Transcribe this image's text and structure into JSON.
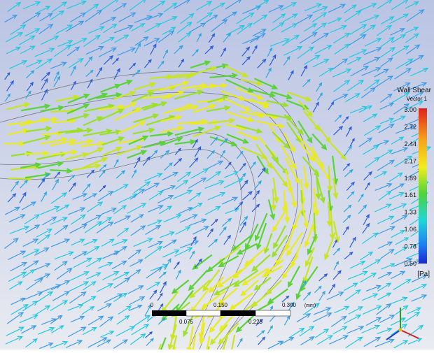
{
  "legend": {
    "title": "Wall Shear",
    "subtitle": "Vector 1",
    "ticks": [
      "3.00",
      "2.72",
      "2.44",
      "2.17",
      "1.89",
      "1.61",
      "1.33",
      "1.06",
      "0.78",
      "0.50"
    ],
    "unit": "[Pa]"
  },
  "scale_bar": {
    "top_labels": [
      "0",
      "0.150",
      "0.300"
    ],
    "unit": "(mm)",
    "bottom_labels": [
      "0.075",
      "0.225"
    ]
  }
}
